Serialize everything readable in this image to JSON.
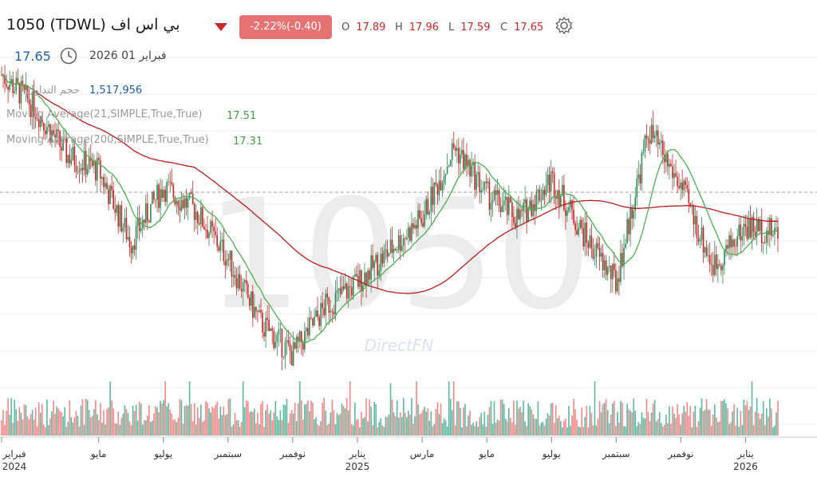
{
  "header": {
    "symbol": "1050  (TDWL)  بي اس اف",
    "change": "-2.22%(-0.40)",
    "ohlc": [
      {
        "k": "O",
        "v": "17.89"
      },
      {
        "k": "H",
        "v": "17.96"
      },
      {
        "k": "L",
        "v": "17.59"
      },
      {
        "k": "C",
        "v": "17.65"
      }
    ],
    "last_price": "17.65",
    "date": "فبراير 01 2026"
  },
  "indicators": {
    "volume_label": "حجم التداول",
    "volume_value": "1,517,956",
    "ma21_label": "Moving Average(21,SIMPLE,True,True)",
    "ma21_value": "17.51",
    "ma200_label": "Moving Average(200,SIMPLE,True,True)",
    "ma200_value": "17.31"
  },
  "watermark": {
    "symbol": "1050",
    "brand": "DirectFN"
  },
  "colors": {
    "up": "#2e8b57",
    "down": "#c62828",
    "ma21": "#4caf50",
    "ma200": "#b71c1c",
    "vol_up": "#5fb8a0",
    "vol_down": "#f08a8a",
    "badge": "#e57373",
    "price": "#1e5fa8"
  },
  "icons": [
    "clock-icon",
    "gear-icon",
    "down-triangle-icon"
  ],
  "chart_data": {
    "type": "candlestick",
    "x_range": [
      "2024-02",
      "2026-02"
    ],
    "x_ticks": [
      "فبراير",
      "مايو",
      "يوليو",
      "سبتمبر",
      "نوفمبر",
      "يناير",
      "مارس",
      "مايو",
      "يوليو",
      "سبتمبر",
      "نوفمبر",
      "يناير"
    ],
    "x_years": [
      "2024",
      "2025",
      "2026"
    ],
    "price_path": [
      {
        "date": "2024-02",
        "price": 21.6
      },
      {
        "date": "2024-03",
        "price": 20.8
      },
      {
        "date": "2024-04",
        "price": 19.6
      },
      {
        "date": "2024-05",
        "price": 19.2
      },
      {
        "date": "2024-06",
        "price": 17.4
      },
      {
        "date": "2024-07",
        "price": 18.8
      },
      {
        "date": "2024-08",
        "price": 18.2
      },
      {
        "date": "2024-09",
        "price": 17.0
      },
      {
        "date": "2024-10",
        "price": 15.4
      },
      {
        "date": "2024-11",
        "price": 14.6
      },
      {
        "date": "2024-12",
        "price": 15.8
      },
      {
        "date": "2025-01",
        "price": 16.4
      },
      {
        "date": "2025-02",
        "price": 17.2
      },
      {
        "date": "2025-03",
        "price": 18.0
      },
      {
        "date": "2025-04",
        "price": 19.8
      },
      {
        "date": "2025-05",
        "price": 18.6
      },
      {
        "date": "2025-06",
        "price": 18.0
      },
      {
        "date": "2025-07",
        "price": 19.0
      },
      {
        "date": "2025-08",
        "price": 17.6
      },
      {
        "date": "2025-09",
        "price": 16.4
      },
      {
        "date": "2025-10",
        "price": 20.2
      },
      {
        "date": "2025-11",
        "price": 18.8
      },
      {
        "date": "2025-12",
        "price": 16.8
      },
      {
        "date": "2026-01",
        "price": 17.8
      },
      {
        "date": "2026-02",
        "price": 17.65
      }
    ]
  }
}
